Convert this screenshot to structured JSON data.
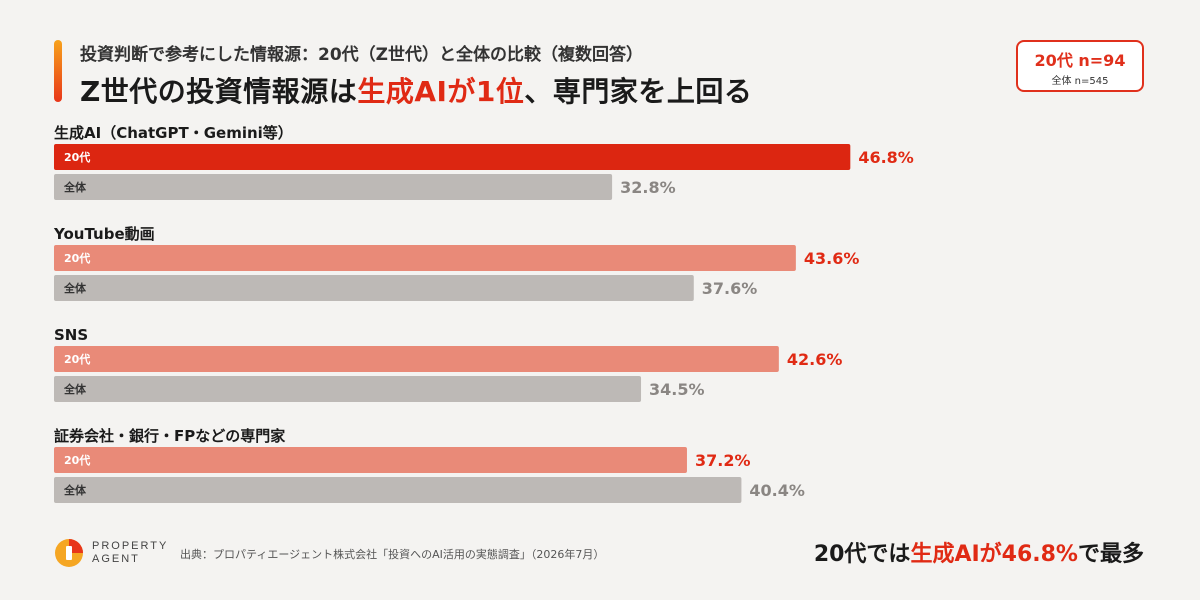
{
  "header": {
    "subtitle": "投資判断で参考にした情報源：20代（Z世代）と全体の比較（複数回答）",
    "title_parts": [
      "Z世代の投資情報源は",
      "生成AIが1位",
      "、専門家を上回る"
    ]
  },
  "sample": {
    "main": "20代 n=94",
    "sub": "全体 n=545"
  },
  "colors": {
    "accent": "#e02a14",
    "top_bar": "#dc2611",
    "gen_bar": "#e98a78",
    "all_bar": "#bdb9b6",
    "all_text": "#8a8683",
    "background": "#f4f3f1"
  },
  "chart_data": {
    "type": "bar",
    "orientation": "horizontal",
    "value_suffix": "%",
    "xlim": [
      0,
      65
    ],
    "series_labels": [
      "20代",
      "全体"
    ],
    "categories": [
      {
        "label": "生成AI（ChatGPT・Gemini等）",
        "gen": 46.8,
        "all": 32.8
      },
      {
        "label": "YouTube動画",
        "gen": 43.6,
        "all": 37.6
      },
      {
        "label": "SNS",
        "gen": 42.6,
        "all": 34.5
      },
      {
        "label": "証券会社・銀行・FPなどの専門家",
        "gen": 37.2,
        "all": 40.4
      }
    ]
  },
  "footer": {
    "brand_line1": "PROPERTY",
    "brand_line2": "AGENT",
    "source": "出典：プロパティエージェント株式会社「投資へのAI活用の実態調査」（2026年7月）",
    "conclusion_parts": [
      "20代では",
      "生成AIが46.8%",
      "で最多"
    ]
  }
}
